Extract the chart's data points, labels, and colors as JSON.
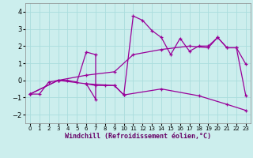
{
  "xlabel": "Windchill (Refroidissement éolien,°C)",
  "background_color": "#cceeed",
  "grid_color": "#aadddd",
  "line_color": "#990099",
  "xlim": [
    -0.5,
    23.5
  ],
  "ylim": [
    -2.5,
    4.5
  ],
  "yticks": [
    -2,
    -1,
    0,
    1,
    2,
    3,
    4
  ],
  "xticks": [
    0,
    1,
    2,
    3,
    4,
    5,
    6,
    7,
    8,
    9,
    10,
    11,
    12,
    13,
    14,
    15,
    16,
    17,
    18,
    19,
    20,
    21,
    22,
    23
  ],
  "series_main": [
    [
      0,
      -0.8
    ],
    [
      1,
      -0.8
    ],
    [
      2,
      -0.1
    ],
    [
      3,
      0.0
    ],
    [
      4,
      0.0
    ],
    [
      5,
      -0.1
    ],
    [
      6,
      1.65
    ],
    [
      7,
      1.5
    ],
    [
      7,
      -1.1
    ],
    [
      6,
      -0.2
    ],
    [
      7,
      -0.3
    ],
    [
      8,
      -0.3
    ],
    [
      9,
      -0.3
    ],
    [
      10,
      -0.85
    ],
    [
      11,
      3.75
    ],
    [
      12,
      3.5
    ],
    [
      13,
      2.9
    ],
    [
      14,
      2.5
    ],
    [
      15,
      1.5
    ],
    [
      16,
      2.45
    ],
    [
      17,
      1.7
    ],
    [
      18,
      2.0
    ],
    [
      19,
      2.0
    ],
    [
      20,
      2.5
    ],
    [
      21,
      1.9
    ],
    [
      22,
      1.9
    ],
    [
      23,
      -0.9
    ]
  ],
  "series_upper": [
    [
      0,
      -0.8
    ],
    [
      3,
      0.0
    ],
    [
      6,
      0.3
    ],
    [
      9,
      0.5
    ],
    [
      11,
      1.5
    ],
    [
      14,
      1.8
    ],
    [
      17,
      2.0
    ],
    [
      19,
      1.9
    ],
    [
      20,
      2.5
    ],
    [
      21,
      1.9
    ],
    [
      22,
      1.9
    ],
    [
      23,
      0.95
    ]
  ],
  "series_lower": [
    [
      0,
      -0.8
    ],
    [
      3,
      0.0
    ],
    [
      6,
      -0.2
    ],
    [
      9,
      -0.3
    ],
    [
      10,
      -0.85
    ],
    [
      14,
      -0.5
    ],
    [
      18,
      -0.9
    ],
    [
      21,
      -1.4
    ],
    [
      23,
      -1.75
    ]
  ]
}
